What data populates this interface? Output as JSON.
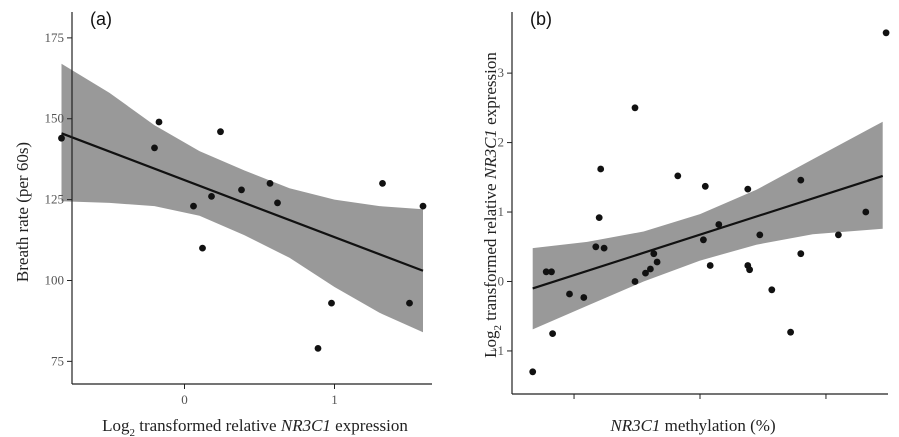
{
  "chart_data": [
    {
      "type": "scatter",
      "panel_label": "(a)",
      "xlabel_parts": [
        "Log",
        "2",
        " transformed relative ",
        "NR3C1",
        " expression"
      ],
      "ylabel": "Breath rate (per 60s)",
      "xlim": [
        -0.75,
        1.65
      ],
      "ylim": [
        68,
        183
      ],
      "xticks": [
        0,
        1
      ],
      "yticks": [
        75,
        100,
        125,
        150,
        175
      ],
      "points": [
        {
          "x": -0.82,
          "y": 144
        },
        {
          "x": -0.2,
          "y": 141
        },
        {
          "x": -0.17,
          "y": 149
        },
        {
          "x": 0.06,
          "y": 123
        },
        {
          "x": 0.12,
          "y": 110
        },
        {
          "x": 0.18,
          "y": 126
        },
        {
          "x": 0.24,
          "y": 146
        },
        {
          "x": 0.38,
          "y": 128
        },
        {
          "x": 0.57,
          "y": 130
        },
        {
          "x": 0.62,
          "y": 124
        },
        {
          "x": 0.89,
          "y": 79
        },
        {
          "x": 0.98,
          "y": 93
        },
        {
          "x": 1.32,
          "y": 130
        },
        {
          "x": 1.5,
          "y": 93
        },
        {
          "x": 1.59,
          "y": 123
        }
      ],
      "fit_line": [
        {
          "x": -0.82,
          "y": 145.5
        },
        {
          "x": 1.59,
          "y": 103
        }
      ],
      "conf_band": {
        "x": [
          -0.82,
          -0.5,
          -0.2,
          0.1,
          0.4,
          0.7,
          1.0,
          1.3,
          1.59
        ],
        "upper": [
          167,
          158,
          148,
          140,
          134,
          128.5,
          125,
          123,
          122
        ],
        "lower": [
          124.5,
          124,
          123,
          120,
          114,
          107,
          98,
          90,
          84
        ]
      },
      "colors": {
        "band": "#999999",
        "line": "#111111",
        "point": "#111111",
        "axis": "#222222"
      }
    },
    {
      "type": "scatter",
      "panel_label": "(b)",
      "xlabel_parts": [
        "NR3C1",
        " methylation (%)"
      ],
      "ylabel_parts": [
        "Log",
        "2",
        " transformed relative ",
        "NR3C1",
        " expression"
      ],
      "xlim": [
        0,
        100
      ],
      "ylim": [
        -1.62,
        3.88
      ],
      "xticks": [],
      "yticks": [
        -1,
        0,
        1,
        2,
        3
      ],
      "points": [
        {
          "x": 5.5,
          "y": -1.3
        },
        {
          "x": 9.1,
          "y": 0.14
        },
        {
          "x": 10.5,
          "y": 0.14
        },
        {
          "x": 10.8,
          "y": -0.75
        },
        {
          "x": 15.3,
          "y": -0.18
        },
        {
          "x": 19.1,
          "y": -0.23
        },
        {
          "x": 22.3,
          "y": 0.5
        },
        {
          "x": 23.2,
          "y": 0.92
        },
        {
          "x": 23.6,
          "y": 1.62
        },
        {
          "x": 24.5,
          "y": 0.48
        },
        {
          "x": 32.7,
          "y": 2.5
        },
        {
          "x": 32.7,
          "y": 0.0
        },
        {
          "x": 35.5,
          "y": 0.12
        },
        {
          "x": 36.8,
          "y": 0.18
        },
        {
          "x": 37.7,
          "y": 0.4
        },
        {
          "x": 38.6,
          "y": 0.28
        },
        {
          "x": 44.1,
          "y": 1.52
        },
        {
          "x": 50.9,
          "y": 0.6
        },
        {
          "x": 51.4,
          "y": 1.37
        },
        {
          "x": 52.7,
          "y": 0.23
        },
        {
          "x": 55.0,
          "y": 0.82
        },
        {
          "x": 62.7,
          "y": 1.33
        },
        {
          "x": 62.7,
          "y": 0.23
        },
        {
          "x": 63.2,
          "y": 0.17
        },
        {
          "x": 65.9,
          "y": 0.67
        },
        {
          "x": 69.1,
          "y": -0.12
        },
        {
          "x": 74.1,
          "y": -0.73
        },
        {
          "x": 76.8,
          "y": 1.46
        },
        {
          "x": 76.8,
          "y": 0.4
        },
        {
          "x": 86.8,
          "y": 0.67
        },
        {
          "x": 94.1,
          "y": 1.0
        },
        {
          "x": 99.5,
          "y": 3.58
        }
      ],
      "fit_line": [
        {
          "x": 5.5,
          "y": -0.1
        },
        {
          "x": 98.6,
          "y": 1.52
        }
      ],
      "conf_band": {
        "x": [
          5.5,
          20,
          35,
          50,
          65,
          80,
          98.6
        ],
        "upper": [
          0.48,
          0.57,
          0.72,
          0.97,
          1.32,
          1.76,
          2.3
        ],
        "lower": [
          -0.69,
          -0.35,
          0.0,
          0.3,
          0.53,
          0.68,
          0.76
        ]
      },
      "colors": {
        "band": "#999999",
        "line": "#111111",
        "point": "#111111",
        "axis": "#222222"
      }
    }
  ]
}
